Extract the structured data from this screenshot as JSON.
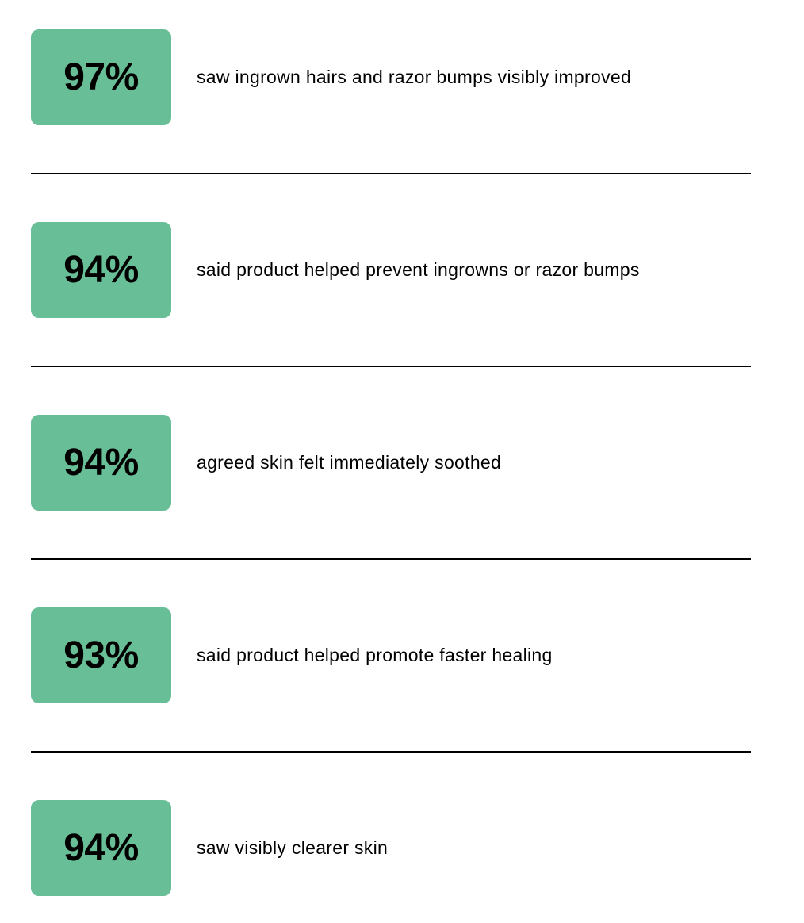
{
  "page": {
    "background": "#ffffff",
    "accent_green": "#68be96",
    "text_color": "#000000",
    "divider_color": "#000000"
  },
  "stats": [
    {
      "value": "97%",
      "label": "saw ingrown hairs and razor bumps visibly improved"
    },
    {
      "value": "94%",
      "label": "said product helped prevent ingrowns or razor bumps"
    },
    {
      "value": "94%",
      "label": "agreed skin felt immediately soothed"
    },
    {
      "value": "93%",
      "label": "said product helped promote faster healing"
    },
    {
      "value": "94%",
      "label": "saw visibly clearer skin"
    }
  ]
}
